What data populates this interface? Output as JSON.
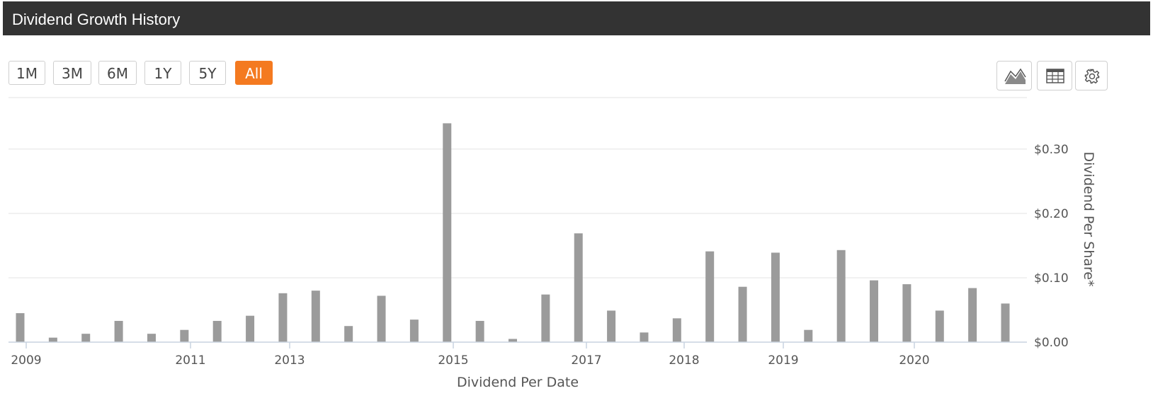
{
  "header": {
    "title": "Dividend Growth History"
  },
  "range_buttons": [
    {
      "label": "1M",
      "active": false
    },
    {
      "label": "3M",
      "active": false
    },
    {
      "label": "6M",
      "active": false
    },
    {
      "label": "1Y",
      "active": false
    },
    {
      "label": "5Y",
      "active": false
    },
    {
      "label": "All",
      "active": true
    }
  ],
  "tools": [
    {
      "icon": "area-chart-icon"
    },
    {
      "icon": "table-icon"
    },
    {
      "icon": "gear-icon"
    }
  ],
  "colors": {
    "accent": "#f47a20",
    "bar": "#9b9b9b",
    "header": "#333333",
    "grid": "#e3e3e3",
    "axis": "#c9d3e0"
  },
  "chart_data": {
    "type": "bar",
    "xlabel": "Dividend Per Date",
    "ylabel": "Dividend Per Share*",
    "ylim": [
      0,
      0.38
    ],
    "yticks": [
      {
        "value": 0,
        "label": "$0.00"
      },
      {
        "value": 0.1,
        "label": "$0.10"
      },
      {
        "value": 0.2,
        "label": "$0.20"
      },
      {
        "value": 0.3,
        "label": "$0.30"
      }
    ],
    "xticks": [
      "2009",
      "2011",
      "2013",
      "2015",
      "2017",
      "2018",
      "2019",
      "2020"
    ],
    "values": [
      0.045,
      0.007,
      0.013,
      0.033,
      0.013,
      0.019,
      0.033,
      0.041,
      0.076,
      0.08,
      0.025,
      0.072,
      0.035,
      0.34,
      0.033,
      0.005,
      0.074,
      0.169,
      0.049,
      0.015,
      0.037,
      0.141,
      0.086,
      0.139,
      0.019,
      0.143,
      0.096,
      0.09,
      0.049,
      0.084,
      0.06
    ],
    "grid": true,
    "legend": "none"
  }
}
